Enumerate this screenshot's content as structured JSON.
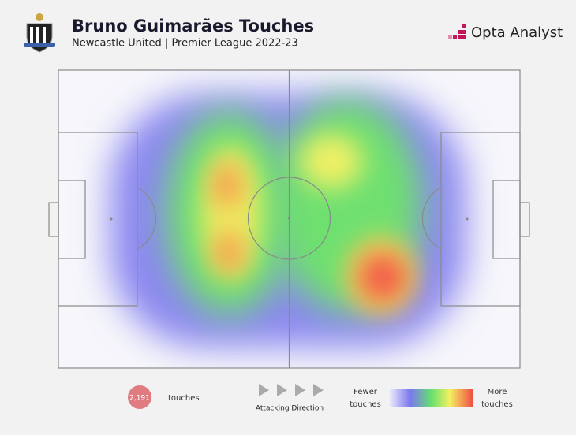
{
  "header": {
    "title": "Bruno Guimarães Touches",
    "subtitle": "Newcastle United | Premier League 2022-23",
    "brand": "Opta Analyst"
  },
  "footer": {
    "touches_count": "2,191",
    "touches_label": "touches",
    "direction_label": "Attacking Direction",
    "scale_low": [
      "Fewer",
      "touches"
    ],
    "scale_high": [
      "More",
      "touches"
    ]
  }
}
